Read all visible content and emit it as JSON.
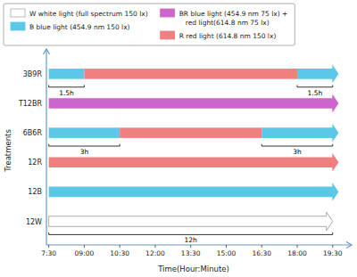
{
  "chart_data": {
    "type": "timeline",
    "xlabel": "Time(Hour:Minute)",
    "ylabel": "Treatments",
    "categories": [
      "3B9R",
      "T12BR",
      "6B6R",
      "12R",
      "12B",
      "12W"
    ],
    "xlim": [
      7.4,
      19.85
    ],
    "xticks": [
      {
        "value": 7.5,
        "label": "7:30"
      },
      {
        "value": 9.0,
        "label": "09:00"
      },
      {
        "value": 10.5,
        "label": "10:30"
      },
      {
        "value": 12.0,
        "label": "12:00"
      },
      {
        "value": 13.5,
        "label": "13:30"
      },
      {
        "value": 15.0,
        "label": "15:00"
      },
      {
        "value": 16.5,
        "label": "16:30"
      },
      {
        "value": 18.0,
        "label": "18:00"
      },
      {
        "value": 19.5,
        "label": "19:30"
      }
    ],
    "segments": [
      [
        {
          "start": 7.5,
          "end": 9.0,
          "color": "#5BC8E8"
        },
        {
          "start": 9.0,
          "end": 18.0,
          "color": "#F08080"
        },
        {
          "start": 18.0,
          "end": 19.75,
          "color": "#5BC8E8"
        }
      ],
      [
        {
          "start": 7.5,
          "end": 19.75,
          "color": "#CC66CC"
        }
      ],
      [
        {
          "start": 7.5,
          "end": 10.5,
          "color": "#5BC8E8"
        },
        {
          "start": 10.5,
          "end": 16.5,
          "color": "#F08080"
        },
        {
          "start": 16.5,
          "end": 19.75,
          "color": "#5BC8E8"
        }
      ],
      [
        {
          "start": 7.5,
          "end": 19.75,
          "color": "#F08080"
        }
      ],
      [
        {
          "start": 7.5,
          "end": 19.75,
          "color": "#5BC8E8"
        }
      ],
      [
        {
          "start": 7.5,
          "end": 19.5,
          "color": "#FFFFFF"
        }
      ]
    ],
    "annotations": [
      {
        "category": "3B9R",
        "x1": 7.5,
        "x2": 9.0,
        "label": "1.5h"
      },
      {
        "category": "3B9R",
        "x1": 18.0,
        "x2": 19.5,
        "label": "1.5h"
      },
      {
        "category": "6B6R",
        "x1": 7.5,
        "x2": 10.5,
        "label": "3h"
      },
      {
        "category": "6B6R",
        "x1": 16.5,
        "x2": 19.5,
        "label": "3h"
      },
      {
        "category": "12W",
        "x1": 7.5,
        "x2": 19.5,
        "label": "12h"
      }
    ],
    "legend_entries": [
      {
        "label": "W white light (full spectrum 150 lx)",
        "color": "#FFFFFF"
      },
      {
        "label": "B blue light (454.9 nm 150 lx)",
        "color": "#5BC8E8"
      },
      {
        "label": "BR blue light (454.9 nm 75 lx) +\n   red light(614.8 nm 75 lx)",
        "color": "#CC66CC"
      },
      {
        "label": "R red light (614.8 nm 150 lx)",
        "color": "#F08080"
      }
    ],
    "outline_color": "#AAAAAA",
    "axis_color": "#6699CC",
    "background_color": "#FFFFFF"
  }
}
